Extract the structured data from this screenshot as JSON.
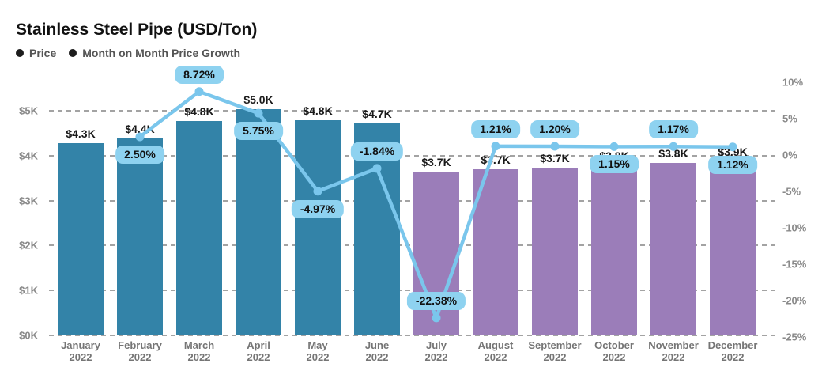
{
  "title": "Stainless Steel Pipe (USD/Ton)",
  "legend": [
    {
      "label": "Price"
    },
    {
      "label": "Month on Month Price Growth"
    }
  ],
  "chart_data": {
    "type": "bar",
    "title": "Stainless Steel Pipe (USD/Ton)",
    "legend_position": "top-left",
    "grid": true,
    "categories": [
      {
        "month": "January",
        "year": "2022"
      },
      {
        "month": "February",
        "year": "2022"
      },
      {
        "month": "March",
        "year": "2022"
      },
      {
        "month": "April",
        "year": "2022"
      },
      {
        "month": "May",
        "year": "2022"
      },
      {
        "month": "June",
        "year": "2022"
      },
      {
        "month": "July",
        "year": "2022"
      },
      {
        "month": "August",
        "year": "2022"
      },
      {
        "month": "September",
        "year": "2022"
      },
      {
        "month": "October",
        "year": "2022"
      },
      {
        "month": "November",
        "year": "2022"
      },
      {
        "month": "December",
        "year": "2022"
      }
    ],
    "series": [
      {
        "name": "Price",
        "type": "bar",
        "axis": "left",
        "unit": "USD thousands per ton",
        "values": [
          4.28,
          4.39,
          4.77,
          5.04,
          4.79,
          4.71,
          3.65,
          3.7,
          3.74,
          3.78,
          3.83,
          3.87
        ],
        "labels": [
          "$4.3K",
          "$4.4K",
          "$4.8K",
          "$5.0K",
          "$4.8K",
          "$4.7K",
          "$3.7K",
          "$3.7K",
          "$3.7K",
          "$3.8K",
          "$3.8K",
          "$3.9K"
        ],
        "colors": [
          "#3383a8",
          "#3383a8",
          "#3383a8",
          "#3383a8",
          "#3383a8",
          "#3383a8",
          "#9b7db9",
          "#9b7db9",
          "#9b7db9",
          "#9b7db9",
          "#9b7db9",
          "#9b7db9"
        ]
      },
      {
        "name": "Month on Month Price Growth",
        "type": "line",
        "axis": "right",
        "unit": "percent",
        "values": [
          null,
          2.5,
          8.72,
          5.75,
          -4.97,
          -1.84,
          -22.38,
          1.21,
          1.2,
          1.15,
          1.17,
          1.12
        ],
        "labels": [
          null,
          "2.50%",
          "8.72%",
          "5.75%",
          "-4.97%",
          "-1.84%",
          "-22.38%",
          "1.21%",
          "1.20%",
          "1.15%",
          "1.17%",
          "1.12%"
        ],
        "badge_side": [
          null,
          "below",
          "above",
          "below",
          "below",
          "above",
          "above",
          "above",
          "above",
          "below",
          "above",
          "below"
        ],
        "color": "#7ac6ec",
        "badge_bg": "#8ed2f0"
      }
    ],
    "left_axis": {
      "ticks": [
        "$0K",
        "$1K",
        "$2K",
        "$3K",
        "$4K",
        "$5K"
      ],
      "range_k": [
        0,
        5
      ]
    },
    "right_axis": {
      "ticks": [
        "10%",
        "5%",
        "0%",
        "-5%",
        "-10%",
        "-15%",
        "-20%",
        "-25%"
      ],
      "range_pct": [
        -25,
        10
      ]
    }
  }
}
